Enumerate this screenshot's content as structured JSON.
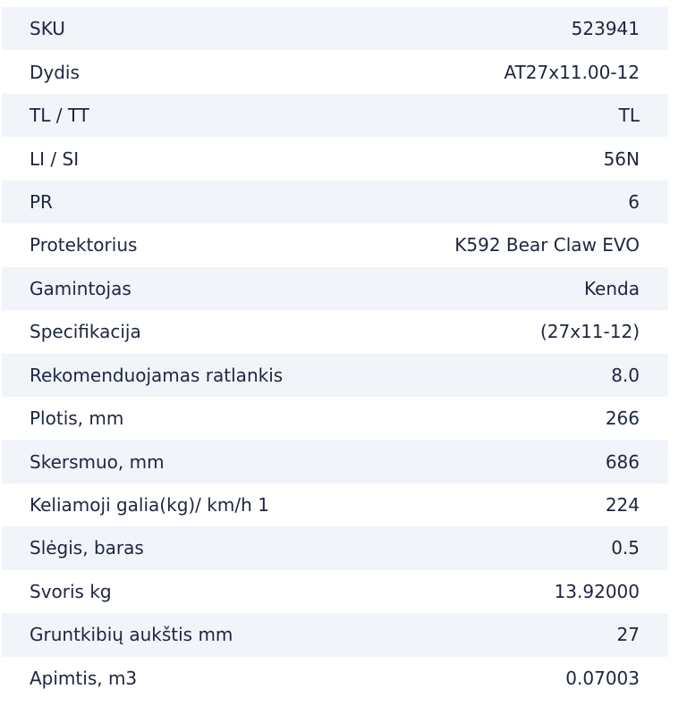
{
  "specs": [
    {
      "label": "SKU",
      "value": "523941"
    },
    {
      "label": "Dydis",
      "value": "AT27x11.00-12"
    },
    {
      "label": "TL / TT",
      "value": "TL"
    },
    {
      "label": "LI / SI",
      "value": "56N"
    },
    {
      "label": "PR",
      "value": "6"
    },
    {
      "label": "Protektorius",
      "value": "K592 Bear Claw EVO"
    },
    {
      "label": "Gamintojas",
      "value": "Kenda"
    },
    {
      "label": "Specifikacija",
      "value": "(27x11-12)"
    },
    {
      "label": "Rekomenduojamas ratlankis",
      "value": "8.0"
    },
    {
      "label": "Plotis, mm",
      "value": "266"
    },
    {
      "label": "Skersmuo, mm",
      "value": "686"
    },
    {
      "label": "Keliamoji galia(kg)/ km/h 1",
      "value": "224"
    },
    {
      "label": "Slėgis, baras",
      "value": "0.5"
    },
    {
      "label": "Svoris kg",
      "value": "13.92000"
    },
    {
      "label": "Gruntkibių aukštis mm",
      "value": "27"
    },
    {
      "label": "Apimtis, m3",
      "value": "0.07003"
    }
  ]
}
